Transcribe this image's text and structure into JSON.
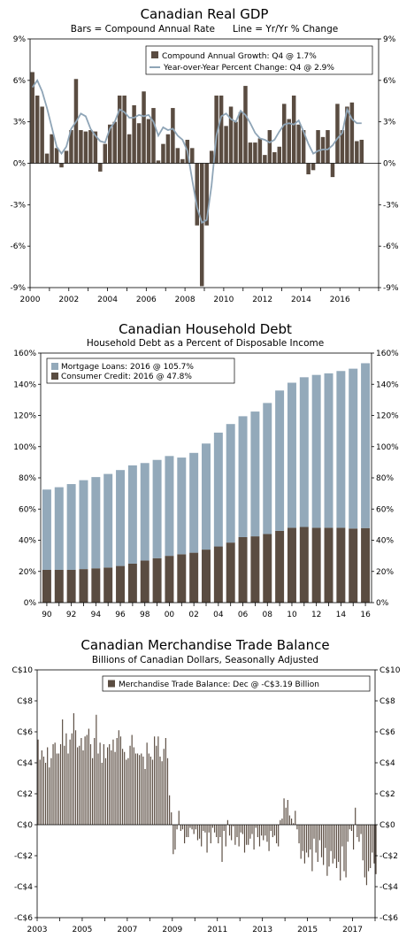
{
  "colors": {
    "bar_dark": "#5a4c41",
    "line_blue": "#8fa5b7",
    "mortgage": "#93a9ba",
    "axis": "#000000"
  },
  "chart_data": [
    {
      "id": "gdp",
      "type": "bar+line",
      "title": "Canadian Real GDP",
      "subtitle": "Bars = Compound Annual Rate      Line = Yr/Yr % Change",
      "xlabel": "",
      "ylabel": "",
      "ylim": [
        -9,
        9
      ],
      "yticks": [
        "-9%",
        "-6%",
        "-3%",
        "0%",
        "3%",
        "6%",
        "9%"
      ],
      "ytick_values": [
        -9,
        -6,
        -3,
        0,
        3,
        6,
        9
      ],
      "xlim": [
        2000,
        2018
      ],
      "xticks": [
        "2000",
        "2002",
        "2004",
        "2006",
        "2008",
        "2010",
        "2012",
        "2014",
        "2016"
      ],
      "grid": false,
      "legend_position": "top-right",
      "series": [
        {
          "name": "Compound Annual Growth: Q4 @ 1.7%",
          "kind": "bar",
          "start": 2000.0,
          "step": 0.25,
          "values": [
            6.6,
            4.9,
            4.1,
            0.7,
            2.1,
            1.1,
            -0.3,
            0.9,
            2.4,
            6.1,
            2.4,
            2.3,
            2.4,
            2.3,
            -0.6,
            1.4,
            2.8,
            3.0,
            4.9,
            4.9,
            2.1,
            4.2,
            2.9,
            5.2,
            3.2,
            4.0,
            0.2,
            1.4,
            2.1,
            4.0,
            1.1,
            0.3,
            1.7,
            1.1,
            -4.5,
            -8.9,
            -4.5,
            0.9,
            4.9,
            4.9,
            2.7,
            4.1,
            3.0,
            3.7,
            5.6,
            1.5,
            1.5,
            1.8,
            0.6,
            2.4,
            0.8,
            1.2,
            4.3,
            3.2,
            4.9,
            2.8,
            2.4,
            -0.8,
            -0.5,
            2.4,
            1.9,
            2.4,
            -1.0,
            4.3,
            2.4,
            4.1,
            4.4,
            1.6,
            1.7
          ]
        },
        {
          "name": "Year-over-Year Percent Change: Q4 @ 2.9%",
          "kind": "line",
          "start": 2000.0,
          "step": 0.25,
          "values": [
            5.5,
            6.0,
            5.2,
            4.0,
            2.6,
            1.2,
            0.7,
            1.2,
            2.5,
            3.0,
            3.6,
            3.4,
            2.5,
            2.0,
            1.6,
            1.5,
            2.5,
            3.0,
            3.9,
            3.7,
            3.3,
            3.3,
            3.5,
            3.4,
            3.5,
            3.0,
            2.0,
            2.6,
            2.4,
            2.5,
            2.0,
            1.7,
            0.9,
            -1.2,
            -3.2,
            -4.3,
            -4.1,
            -1.6,
            2.0,
            3.4,
            3.6,
            3.2,
            3.0,
            3.8,
            3.5,
            2.9,
            2.2,
            1.8,
            1.7,
            1.5,
            1.7,
            2.3,
            2.8,
            2.9,
            2.8,
            3.1,
            2.3,
            1.4,
            0.7,
            0.9,
            1.0,
            1.0,
            1.3,
            1.8,
            2.2,
            3.9,
            3.2,
            2.9,
            2.9
          ]
        }
      ]
    },
    {
      "id": "debt",
      "type": "bar",
      "title": "Canadian Household Debt",
      "subtitle": "Household Debt as a Percent of Disposable Income",
      "xlabel": "",
      "ylabel": "",
      "ylim": [
        0,
        160
      ],
      "yticks": [
        "0%",
        "20%",
        "40%",
        "60%",
        "80%",
        "100%",
        "120%",
        "140%",
        "160%"
      ],
      "ytick_values": [
        0,
        20,
        40,
        60,
        80,
        100,
        120,
        140,
        160
      ],
      "categories": [
        "1990",
        "1991",
        "1992",
        "1993",
        "1994",
        "1995",
        "1996",
        "1997",
        "1998",
        "1999",
        "2000",
        "2001",
        "2002",
        "2003",
        "2004",
        "2005",
        "2006",
        "2007",
        "2008",
        "2009",
        "2010",
        "2011",
        "2012",
        "2013",
        "2014",
        "2015",
        "2016"
      ],
      "xtick_labels": [
        "90",
        "92",
        "94",
        "96",
        "98",
        "00",
        "02",
        "04",
        "06",
        "08",
        "10",
        "12",
        "14",
        "16"
      ],
      "grid": false,
      "legend_position": "top-left",
      "series": [
        {
          "name": "Mortgage Loans: 2016 @ 105.7%",
          "values": [
            51.5,
            53,
            55,
            57,
            58.5,
            60,
            61.5,
            63,
            62.5,
            63,
            64,
            62,
            64,
            68,
            73,
            76,
            77.5,
            80,
            84,
            90,
            93,
            96,
            98,
            99,
            100.5,
            102.5,
            105.7
          ]
        },
        {
          "name": "Consumer Credit: 2016 @ 47.8%",
          "values": [
            21,
            21,
            21,
            21.5,
            22,
            22.5,
            23.5,
            25,
            27,
            28.5,
            30,
            31,
            32,
            34,
            36,
            38.5,
            42,
            42.5,
            44,
            46,
            48,
            48.5,
            48,
            48,
            48,
            47.5,
            47.8
          ]
        }
      ]
    },
    {
      "id": "trade",
      "type": "bar",
      "title": "Canadian Merchandise Trade Balance",
      "subtitle": "Billions of Canadian Dollars, Seasonally Adjusted",
      "xlabel": "",
      "ylabel": "",
      "ylim": [
        -6,
        10
      ],
      "yticks": [
        "-C$6",
        "-C$4",
        "-C$2",
        "C$0",
        "C$2",
        "C$4",
        "C$6",
        "C$8",
        "C$10"
      ],
      "ytick_values": [
        -6,
        -4,
        -2,
        0,
        2,
        4,
        6,
        8,
        10
      ],
      "xlim": [
        2003,
        2018
      ],
      "xticks": [
        "2003",
        "2005",
        "2007",
        "2009",
        "2011",
        "2013",
        "2015",
        "2017"
      ],
      "grid": false,
      "legend_position": "top-right",
      "series": [
        {
          "name": "Merchandise Trade Balance: Dec @ -C$3.19 Billion",
          "start": 2003.0,
          "step": 0.08333,
          "values": [
            5.5,
            4.2,
            4.8,
            4.4,
            4.0,
            5.0,
            3.7,
            4.3,
            5.2,
            5.3,
            4.6,
            4.6,
            5.2,
            6.8,
            5.1,
            5.9,
            4.6,
            5.5,
            5.9,
            7.2,
            6.1,
            5.0,
            5.1,
            5.6,
            4.8,
            5.7,
            5.8,
            6.2,
            5.2,
            4.3,
            5.6,
            7.1,
            4.6,
            5.3,
            4.0,
            5.2,
            4.3,
            5.0,
            5.2,
            4.8,
            5.5,
            4.7,
            5.6,
            6.1,
            5.7,
            4.9,
            4.7,
            4.2,
            4.3,
            5.1,
            5.8,
            5.0,
            4.6,
            4.6,
            4.5,
            4.6,
            4.4,
            3.6,
            5.3,
            4.6,
            4.4,
            4.2,
            5.7,
            5.1,
            5.7,
            4.4,
            4.1,
            4.9,
            5.6,
            4.3,
            1.9,
            0.8,
            -1.9,
            -1.6,
            -0.3,
            0.9,
            -0.4,
            -0.3,
            -1.2,
            -0.8,
            -0.8,
            -0.2,
            -0.3,
            -0.6,
            -0.3,
            -1.0,
            -0.9,
            -1.4,
            -0.4,
            -0.5,
            -1.8,
            -0.5,
            -1.2,
            -0.2,
            -0.5,
            -0.8,
            -1.2,
            -0.8,
            -2.4,
            -0.4,
            -1.4,
            0.3,
            -0.7,
            -1.0,
            -0.1,
            -1.3,
            -0.8,
            -1.4,
            -0.5,
            -0.6,
            -1.8,
            -1.3,
            -1.3,
            -0.9,
            -0.6,
            -1.6,
            -0.2,
            -0.8,
            -1.4,
            -0.7,
            -1.0,
            -0.7,
            -1.1,
            -1.7,
            -0.4,
            -0.8,
            -0.7,
            -1.2,
            -1.4,
            0.3,
            0.4,
            1.7,
            1.1,
            1.6,
            0.6,
            0.4,
            0.1,
            0.9,
            -0.3,
            -1.2,
            -2.2,
            -1.7,
            -2.5,
            -1.8,
            -2.1,
            -1.6,
            -3.0,
            -0.9,
            -1.8,
            -2.4,
            -1.0,
            -2.1,
            -2.6,
            -1.5,
            -3.3,
            -2.7,
            -1.7,
            -2.5,
            -2.2,
            -2.8,
            -2.4,
            -3.6,
            -1.4,
            -3.0,
            -3.4,
            -1.1,
            -0.3,
            -0.4,
            -1.6,
            1.1,
            -0.8,
            -1.1,
            -0.6,
            -2.3,
            -3.4,
            -3.9,
            -3.0,
            -2.8,
            -1.8,
            -2.5,
            -3.19
          ]
        }
      ]
    }
  ]
}
